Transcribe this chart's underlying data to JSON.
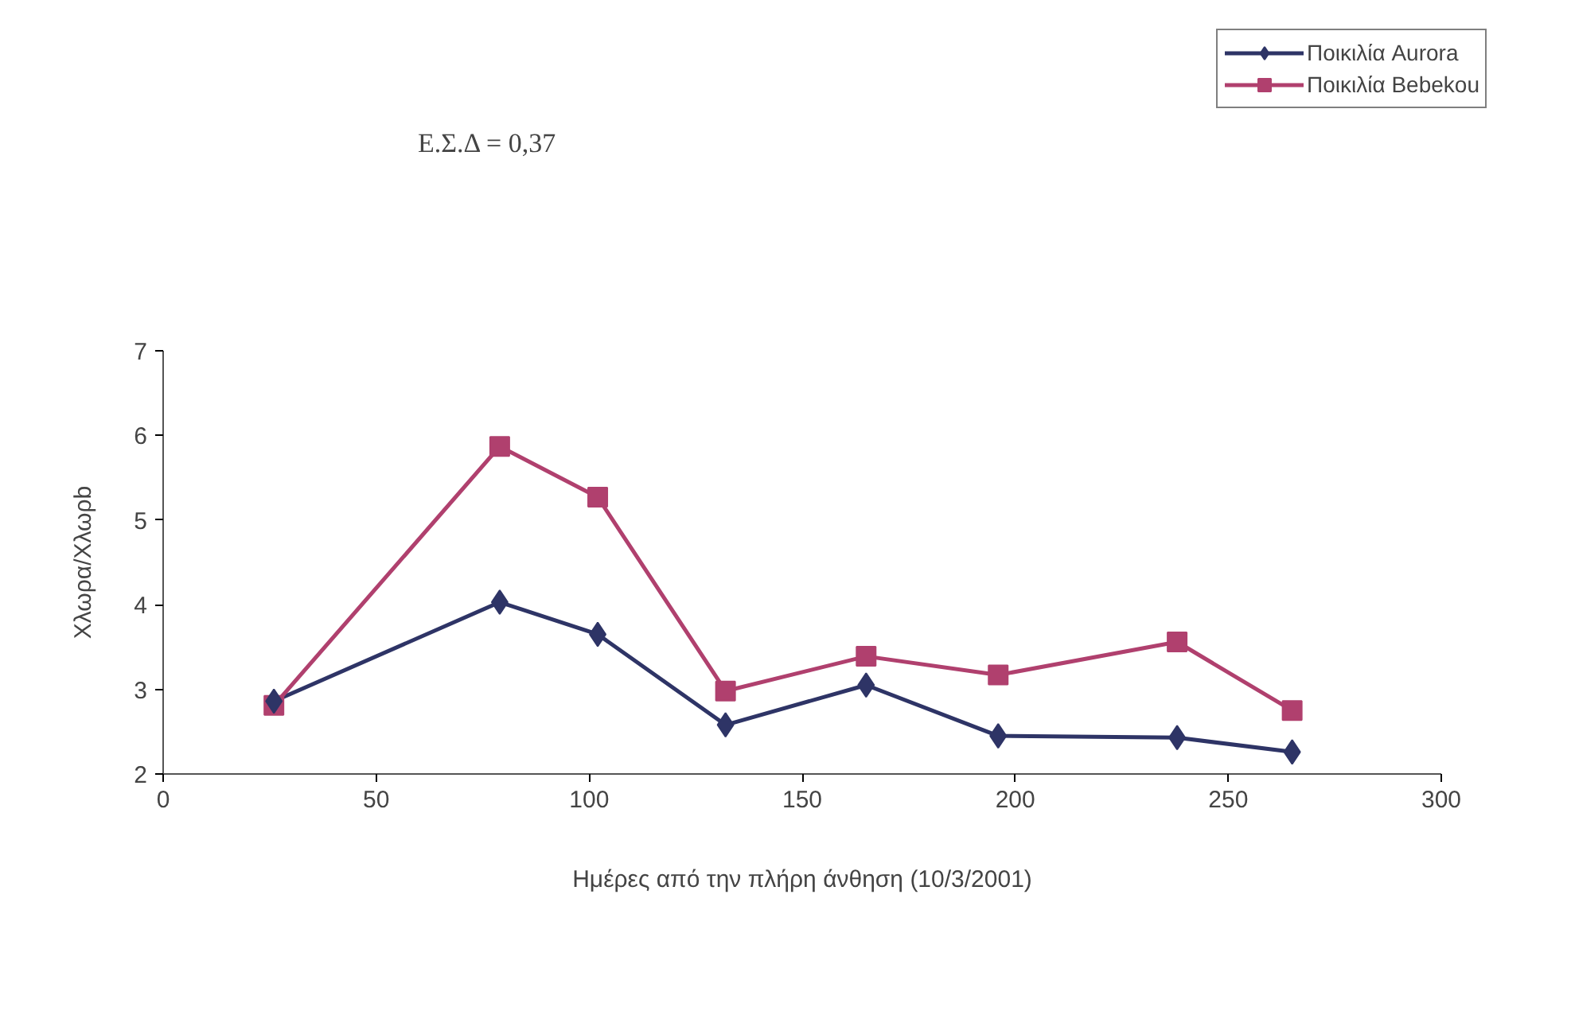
{
  "chart_data": {
    "type": "line",
    "xlabel": "Ημέρες από την πλήρη άνθηση (10/3/2001)",
    "ylabel": "Χλωρα/Χλωρb",
    "annotations": [
      "Ε.Σ.Δ = 0,37"
    ],
    "xlim": [
      0,
      300
    ],
    "xticks": [
      0,
      50,
      100,
      150,
      200,
      250,
      300
    ],
    "ylim": [
      2,
      7
    ],
    "yticks": [
      2,
      3,
      4,
      5,
      6,
      7
    ],
    "grid": false,
    "legend": "top right",
    "series": [
      {
        "name": "Ποικιλία Aurora",
        "color": "#2e3466",
        "marker": "diamond",
        "x": [
          26,
          79,
          102,
          132,
          165,
          196,
          238,
          265
        ],
        "values": [
          2.86,
          4.03,
          3.65,
          2.58,
          3.05,
          2.45,
          2.43,
          2.26
        ]
      },
      {
        "name": "Ποικιλία Bebekou",
        "color": "#b0406e",
        "marker": "square",
        "x": [
          26,
          79,
          102,
          132,
          165,
          196,
          238,
          265
        ],
        "values": [
          2.81,
          5.87,
          5.27,
          2.98,
          3.39,
          3.17,
          3.56,
          2.75
        ]
      }
    ]
  }
}
